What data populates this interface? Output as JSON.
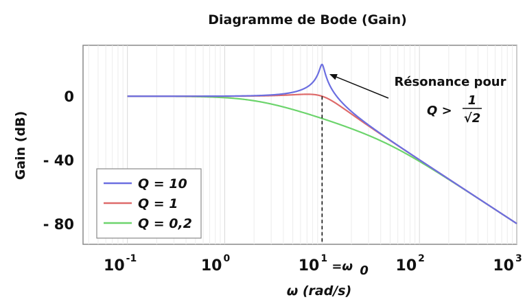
{
  "chart_data": {
    "type": "line",
    "title": "Diagramme de Bode (Gain)",
    "xlabel": "ω (rad/s)",
    "ylabel": "Gain (dB)",
    "xscale": "log",
    "xlim": [
      0.035,
      1000
    ],
    "ylim": [
      -93,
      32
    ],
    "grid": true,
    "legend_position": "bottom-left",
    "x_ticks": [
      {
        "value": 0.1,
        "base": "10",
        "exp": "-1"
      },
      {
        "value": 1,
        "base": "10",
        "exp": "0"
      },
      {
        "value": 10,
        "base": "10",
        "exp": "1"
      },
      {
        "value": 100,
        "base": "10",
        "exp": "2"
      },
      {
        "value": 1000,
        "base": "10",
        "exp": "3"
      }
    ],
    "y_ticks": [
      {
        "value": 0,
        "label": "0"
      },
      {
        "value": -40,
        "label": "- 40"
      },
      {
        "value": -80,
        "label": "- 80"
      }
    ],
    "x_tick_annotation": {
      "text": "=ω",
      "sub": "0",
      "at": 10
    },
    "resonance_marker_x": 10,
    "annotation": {
      "line1": "Résonance pour",
      "lhs": "Q >",
      "num": "1",
      "den": "√2",
      "points_to": {
        "x": 11,
        "y": 20
      }
    },
    "omega0": 10,
    "series": [
      {
        "name": "Q = 10",
        "Q": 10,
        "color": "#6b6ee0"
      },
      {
        "name": "Q = 1",
        "Q": 1,
        "color": "#de6a6a"
      },
      {
        "name": "Q = 0,2",
        "Q": 0.2,
        "color": "#6cd46c"
      }
    ],
    "curve_x_range": [
      0.1,
      1000
    ]
  }
}
